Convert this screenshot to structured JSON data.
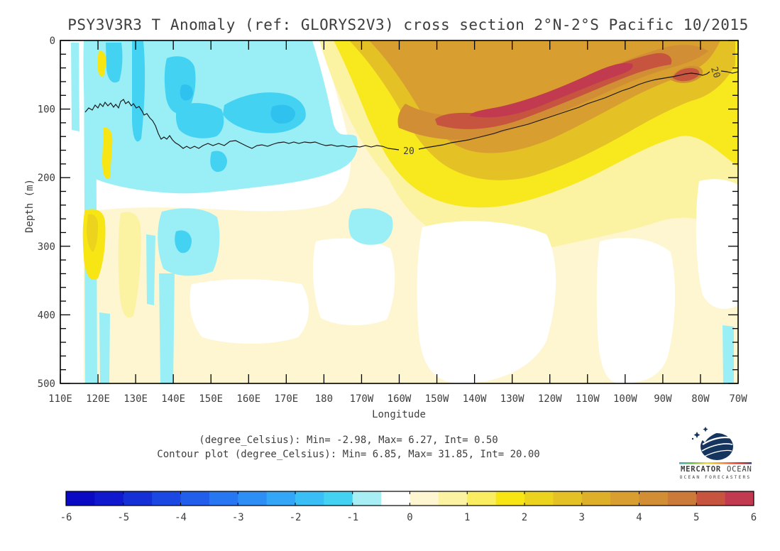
{
  "title": "PSY3V3R3 T Anomaly (ref: GLORYS2V3) cross section 2°N-2°S Pacific 10/2015",
  "caption": {
    "line1": "(degree_Celsius): Min= -2.98, Max= 6.27, Int= 0.50",
    "line2": "Contour plot (degree_Celsius): Min= 6.85, Max= 31.85, Int= 20.00"
  },
  "logo": {
    "name_bold": "MERCATOR",
    "name_light": "OCEAN",
    "tagline": "OCEAN FORECASTERS"
  },
  "chart_data": {
    "type": "heatmap",
    "title": "PSY3V3R3 T Anomaly (ref: GLORYS2V3) cross section 2°N-2°S Pacific 10/2015",
    "xlabel": "Longitude",
    "ylabel": "Depth (m)",
    "x_ticks": [
      "110E",
      "120E",
      "130E",
      "140E",
      "150E",
      "160E",
      "170E",
      "180",
      "170W",
      "160W",
      "150W",
      "140W",
      "130W",
      "120W",
      "110W",
      "100W",
      "90W",
      "80W",
      "70W"
    ],
    "y_ticks": [
      "0",
      "100",
      "200",
      "300",
      "400",
      "500"
    ],
    "depth_range_m": [
      0,
      500
    ],
    "anomaly_stats": {
      "units": "degree_Celsius",
      "min": -2.98,
      "max": 6.27,
      "interval": 0.5
    },
    "contour_stats": {
      "units": "degree_Celsius",
      "min": 6.85,
      "max": 31.85,
      "interval": 20.0
    },
    "contour_label": "20",
    "isotherm_20": {
      "longitudes": [
        "110E",
        "120E",
        "130E",
        "140E",
        "150E",
        "160E",
        "170E",
        "180",
        "170W",
        "160W",
        "150W",
        "140W",
        "130W",
        "120W",
        "110W",
        "100W",
        "90W",
        "80W",
        "70W"
      ],
      "depth_m": [
        98,
        96,
        117,
        151,
        150,
        155,
        149,
        150,
        155,
        158,
        148,
        141,
        127,
        112,
        105,
        84,
        63,
        50,
        47
      ]
    },
    "surface_anomaly_C": [
      -0.5,
      -1.0,
      -0.5,
      -1.0,
      -1.5,
      -1.0,
      -0.5,
      0.5,
      1.5,
      2.5,
      3.0,
      3.0,
      3.5,
      3.5,
      3.5,
      3.0,
      3.5,
      2.5,
      2.0
    ],
    "anomaly_100m_C": [
      -0.5,
      -1.0,
      -1.0,
      -1.5,
      -2.0,
      -2.5,
      -2.0,
      -2.0,
      -1.5,
      0.5,
      3.0,
      4.0,
      5.0,
      5.5,
      5.5,
      4.5,
      4.0,
      3.0,
      1.5
    ],
    "colorbar": {
      "range": [
        -6,
        6
      ],
      "step": 0.5,
      "tick_labels": [
        "-6",
        "-5",
        "-4",
        "-3",
        "-2",
        "-1",
        "0",
        "1",
        "2",
        "3",
        "4",
        "5",
        "6"
      ],
      "colors": [
        "#0a0ac4",
        "#1119ce",
        "#1630d8",
        "#1b47e2",
        "#215eec",
        "#2776f2",
        "#2d8ef6",
        "#33a6f8",
        "#3abef6",
        "#44d2f2",
        "#a7eef5",
        "#ffffff",
        "#fdf6d0",
        "#fbf2a2",
        "#faed62",
        "#f7e614",
        "#ecd41e",
        "#e4c226",
        "#deb02a",
        "#d89e30",
        "#d28e34",
        "#cc7a3a",
        "#c6543e",
        "#c23a50"
      ]
    }
  }
}
